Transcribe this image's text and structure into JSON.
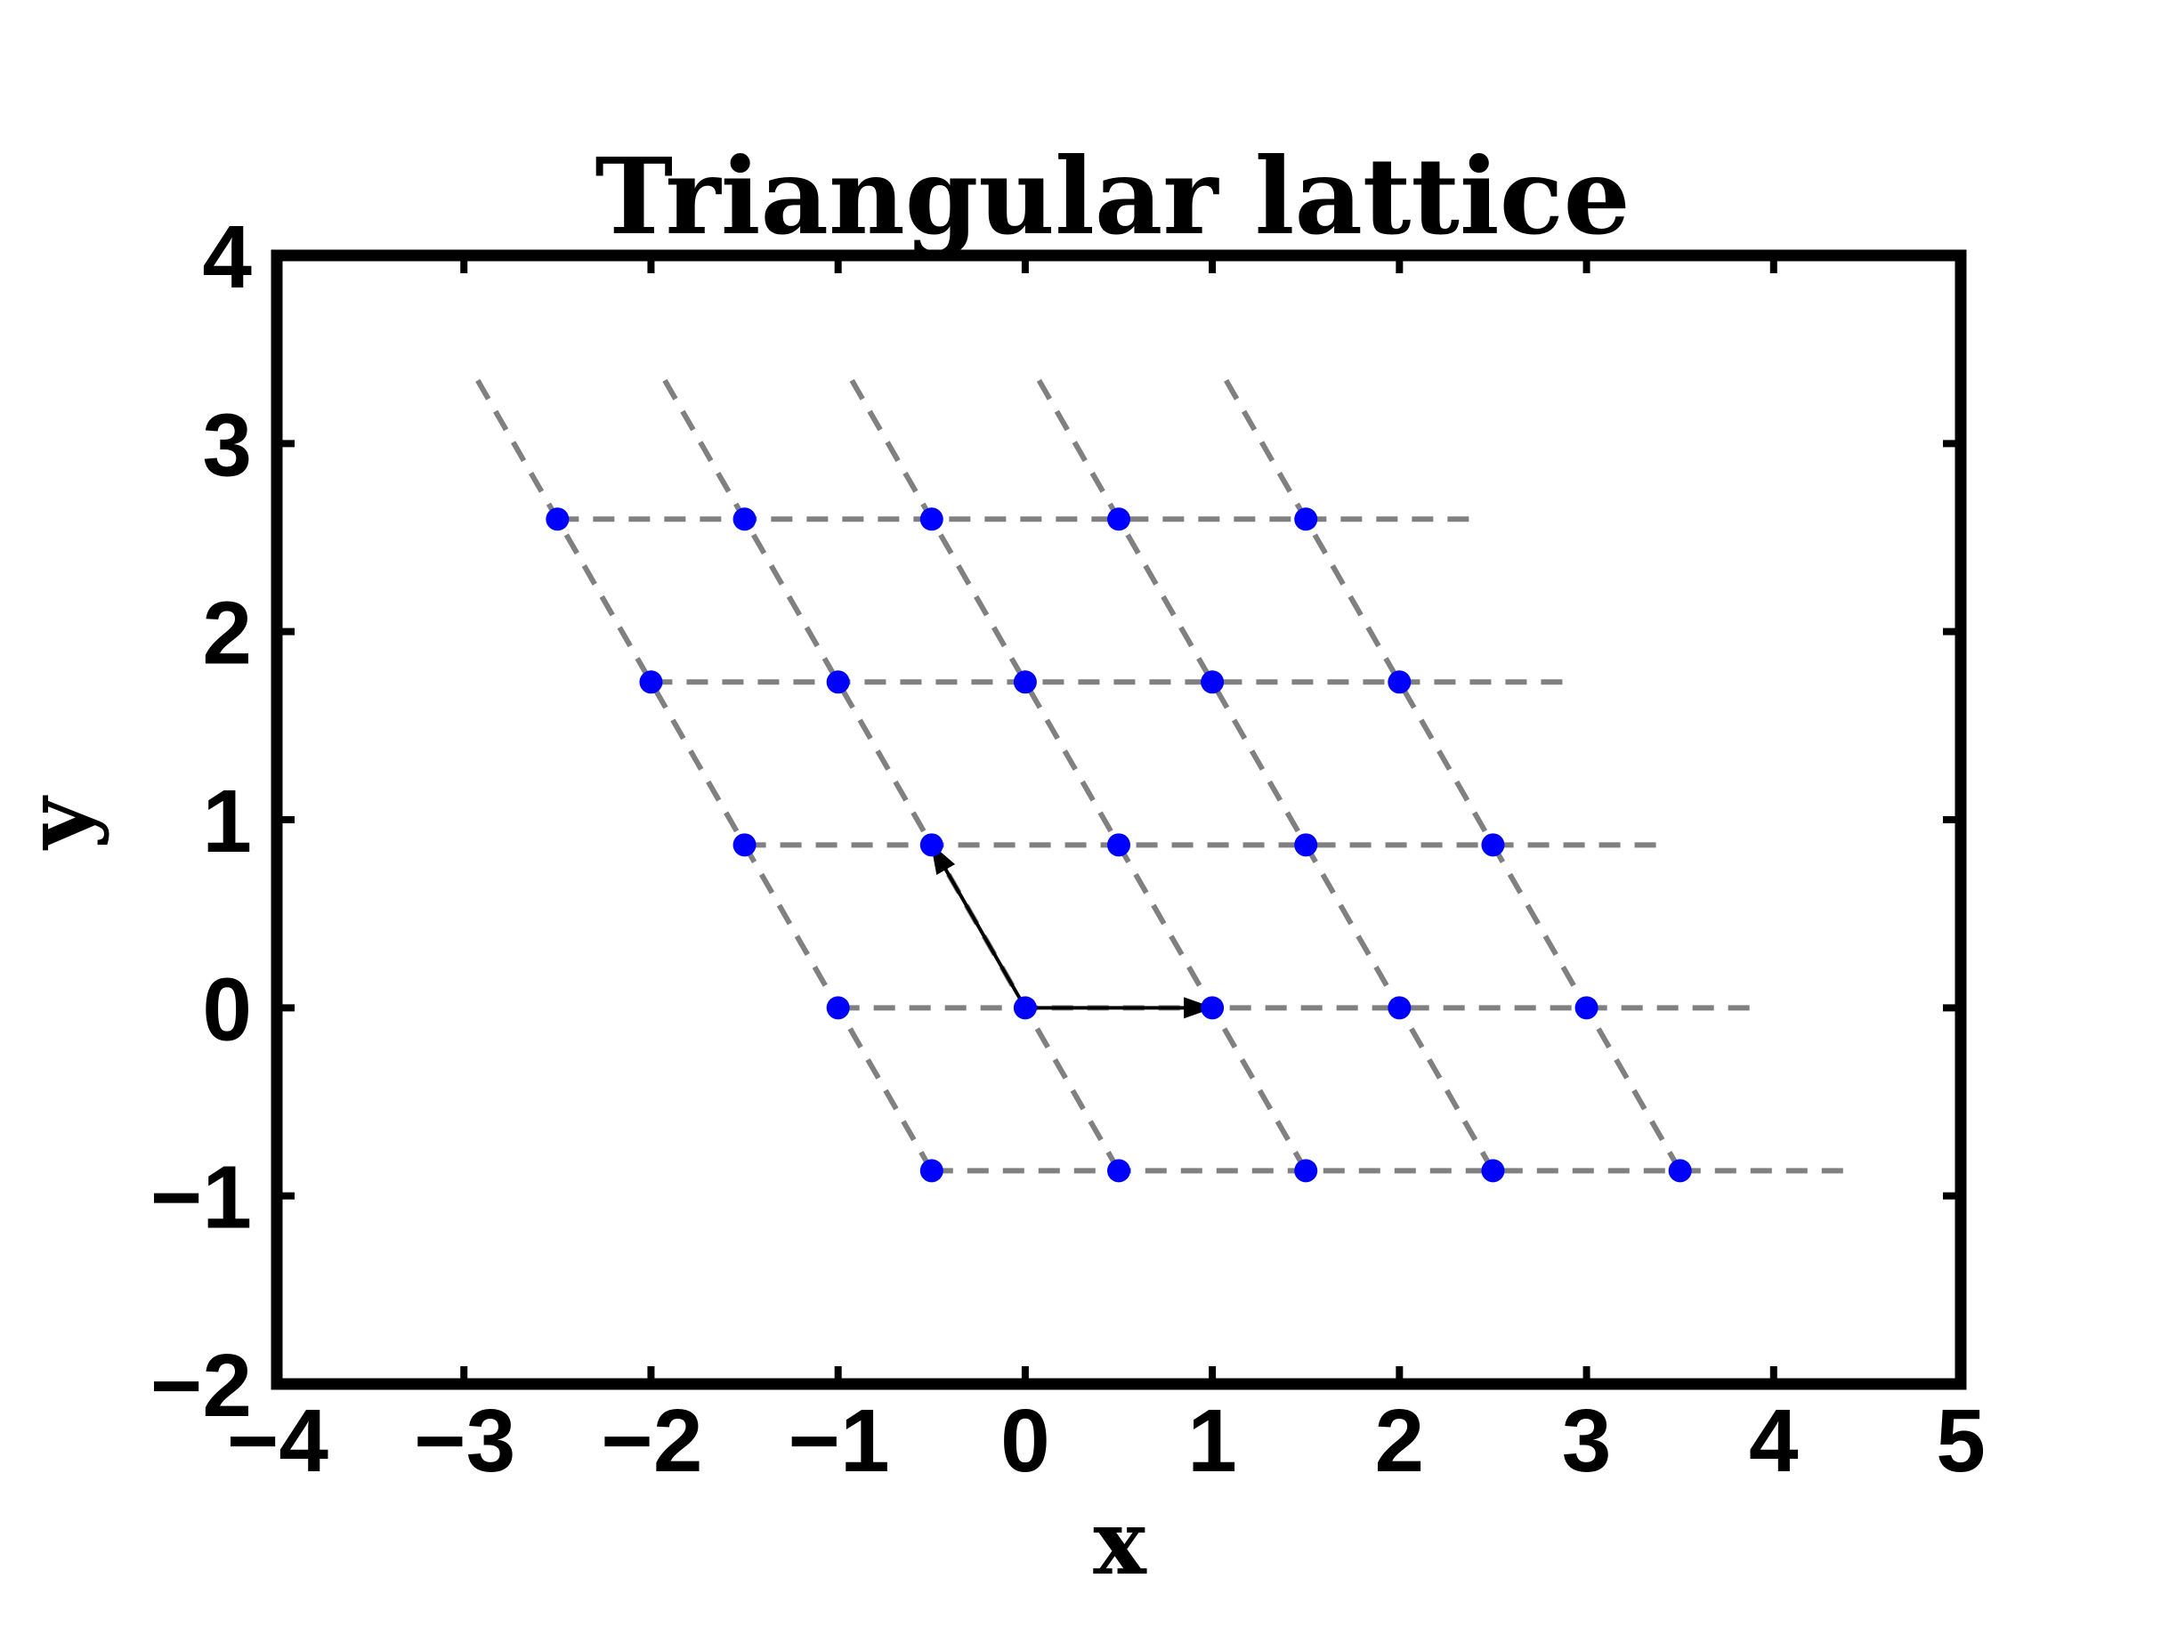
{
  "chart_data": {
    "type": "scatter",
    "title": "Triangular lattice",
    "xlabel": "x",
    "ylabel": "y",
    "xlim": [
      -4,
      5
    ],
    "ylim": [
      -2,
      4
    ],
    "grid": false,
    "xticks": [
      {
        "value": -4,
        "label": "−4"
      },
      {
        "value": -3,
        "label": "−3"
      },
      {
        "value": -2,
        "label": "−2"
      },
      {
        "value": -1,
        "label": "−1"
      },
      {
        "value": 0,
        "label": "0"
      },
      {
        "value": 1,
        "label": "1"
      },
      {
        "value": 2,
        "label": "2"
      },
      {
        "value": 3,
        "label": "3"
      },
      {
        "value": 4,
        "label": "4"
      },
      {
        "value": 5,
        "label": "5"
      }
    ],
    "yticks": [
      {
        "value": -2,
        "label": "−2"
      },
      {
        "value": -1,
        "label": "−1"
      },
      {
        "value": 0,
        "label": "0"
      },
      {
        "value": 1,
        "label": "1"
      },
      {
        "value": 2,
        "label": "2"
      },
      {
        "value": 3,
        "label": "3"
      },
      {
        "value": 4,
        "label": "4"
      }
    ],
    "points": [
      [
        -0.5,
        -0.866
      ],
      [
        0.5,
        -0.866
      ],
      [
        1.5,
        -0.866
      ],
      [
        2.5,
        -0.866
      ],
      [
        3.5,
        -0.866
      ],
      [
        -1,
        0
      ],
      [
        0,
        0
      ],
      [
        1,
        0
      ],
      [
        2,
        0
      ],
      [
        3,
        0
      ],
      [
        -1.5,
        0.866
      ],
      [
        -0.5,
        0.866
      ],
      [
        0.5,
        0.866
      ],
      [
        1.5,
        0.866
      ],
      [
        2.5,
        0.866
      ],
      [
        -2,
        1.732
      ],
      [
        -1,
        1.732
      ],
      [
        0,
        1.732
      ],
      [
        1,
        1.732
      ],
      [
        2,
        1.732
      ],
      [
        -2.5,
        2.598
      ],
      [
        -1.5,
        2.598
      ],
      [
        -0.5,
        2.598
      ],
      [
        0.5,
        2.598
      ],
      [
        1.5,
        2.598
      ]
    ],
    "horizontal_lines": [
      {
        "x": [
          -0.5,
          4.4
        ],
        "y": -0.866
      },
      {
        "x": [
          -1,
          3.9
        ],
        "y": 0
      },
      {
        "x": [
          -1.5,
          3.4
        ],
        "y": 0.866
      },
      {
        "x": [
          -2,
          2.9
        ],
        "y": 1.732
      },
      {
        "x": [
          -2.5,
          2.4
        ],
        "y": 2.598
      }
    ],
    "slanted_lines": [
      {
        "x": [
          -0.5,
          -2.95
        ],
        "y": [
          -0.866,
          3.377
        ]
      },
      {
        "x": [
          0.5,
          -1.95
        ],
        "y": [
          -0.866,
          3.377
        ]
      },
      {
        "x": [
          1.5,
          -0.95
        ],
        "y": [
          -0.866,
          3.377
        ]
      },
      {
        "x": [
          2.5,
          0.05
        ],
        "y": [
          -0.866,
          3.377
        ]
      },
      {
        "x": [
          3.5,
          1.05
        ],
        "y": [
          -0.866,
          3.377
        ]
      }
    ],
    "vectors": [
      {
        "from": [
          0,
          0
        ],
        "to": [
          1,
          0
        ]
      },
      {
        "from": [
          0,
          0
        ],
        "to": [
          -0.5,
          0.866
        ]
      }
    ],
    "colors": {
      "points": "#0000ff",
      "lines": "#808080",
      "vectors": "#000000",
      "frame": "#000000"
    }
  }
}
